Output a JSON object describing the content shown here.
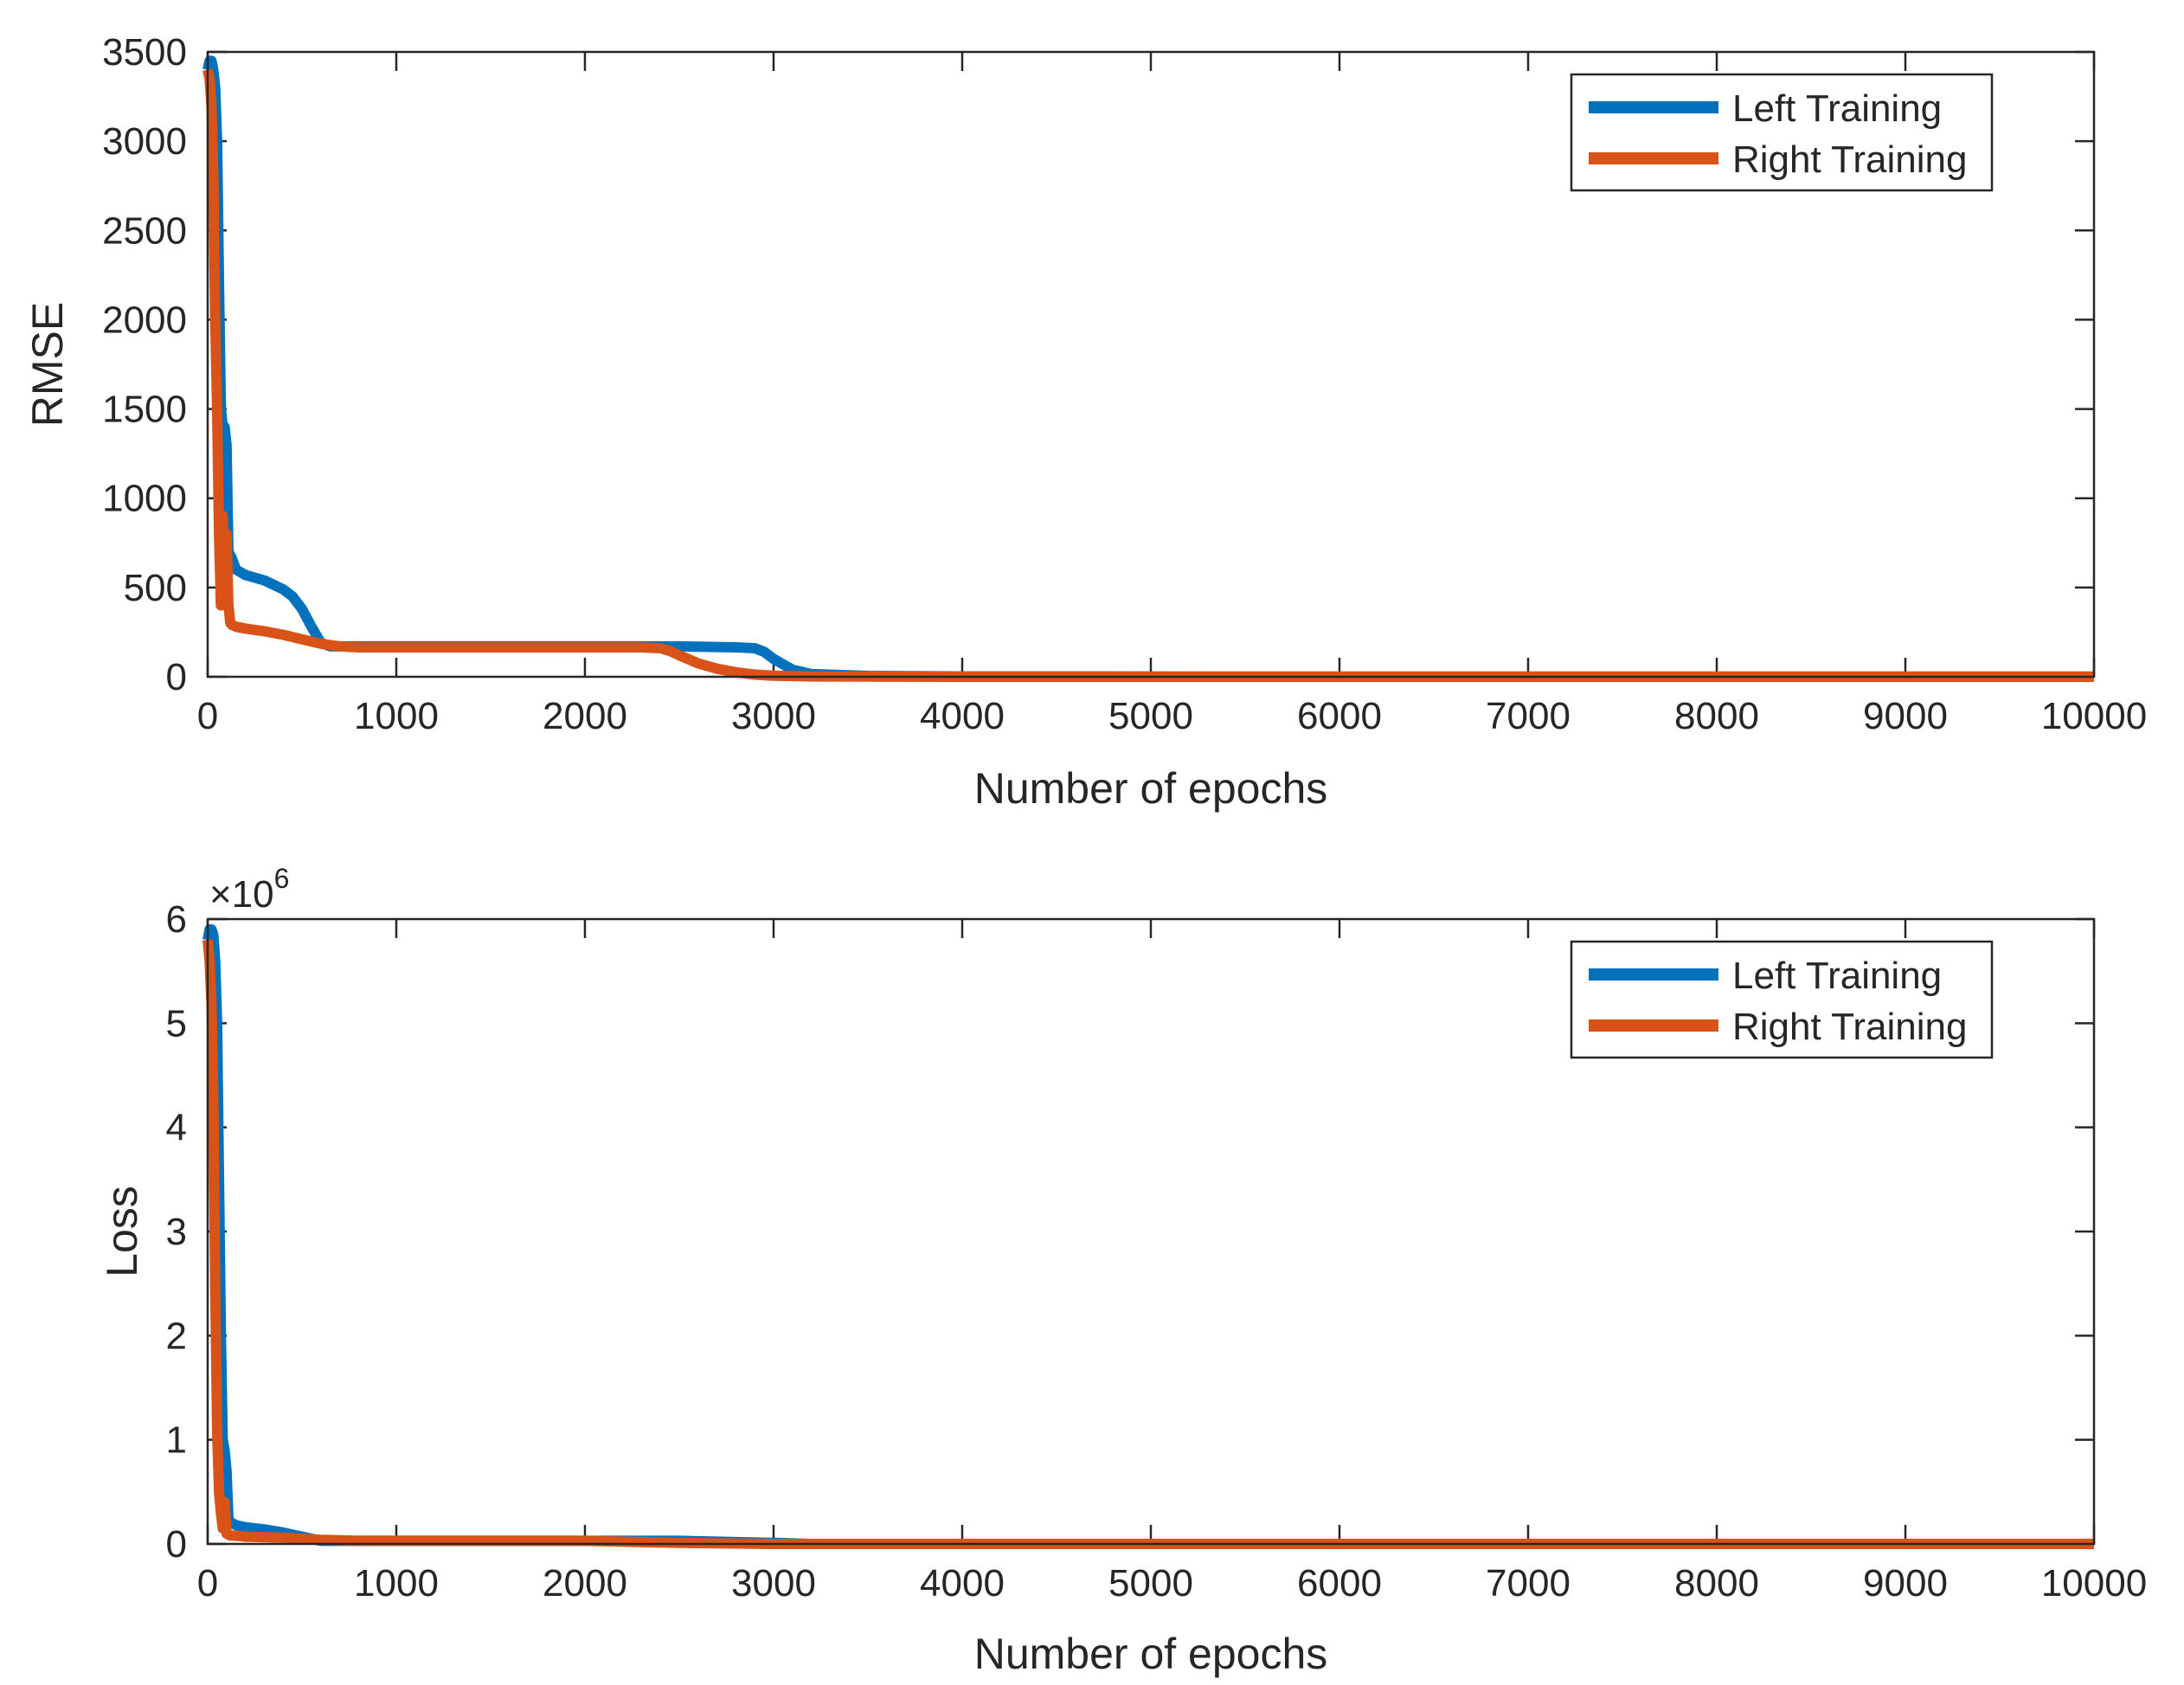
{
  "colors": {
    "left": "#0072BD",
    "right": "#D95319",
    "axis": "#262626",
    "background": "#ffffff"
  },
  "chart_data": [
    {
      "type": "line",
      "title": "",
      "xlabel": "Number of epochs",
      "ylabel": "RMSE",
      "exponent_label": "",
      "xlim": [
        0,
        10000
      ],
      "ylim": [
        0,
        3500
      ],
      "xticks": [
        0,
        1000,
        2000,
        3000,
        4000,
        5000,
        6000,
        7000,
        8000,
        9000,
        10000
      ],
      "yticks": [
        0,
        500,
        1000,
        1500,
        2000,
        2500,
        3000,
        3500
      ],
      "xtick_labels": [
        "0",
        "1000",
        "2000",
        "3000",
        "4000",
        "5000",
        "6000",
        "7000",
        "8000",
        "9000",
        "10000"
      ],
      "ytick_labels": [
        "0",
        "500",
        "1000",
        "1500",
        "2000",
        "2500",
        "3000",
        "3500"
      ],
      "grid": false,
      "legend": {
        "position": "top-right",
        "entries": [
          "Left Training",
          "Right Training"
        ]
      },
      "series": [
        {
          "name": "Left Training",
          "color": "#0072BD",
          "x": [
            0,
            10,
            20,
            30,
            40,
            50,
            60,
            70,
            80,
            90,
            100,
            110,
            120,
            130,
            150,
            200,
            300,
            400,
            450,
            500,
            550,
            600,
            650,
            700,
            800,
            1000,
            1500,
            2000,
            2500,
            2800,
            2900,
            2950,
            3000,
            3100,
            3200,
            3500,
            4000,
            6000,
            8000,
            10000
          ],
          "y": [
            3400,
            3450,
            3450,
            3400,
            3300,
            3000,
            2200,
            1500,
            1400,
            1400,
            1300,
            700,
            680,
            660,
            600,
            570,
            540,
            490,
            450,
            380,
            280,
            190,
            170,
            170,
            170,
            170,
            170,
            170,
            170,
            165,
            160,
            140,
            100,
            40,
            15,
            5,
            2,
            1,
            1,
            1
          ]
        },
        {
          "name": "Right Training",
          "color": "#D95319",
          "x": [
            0,
            10,
            20,
            30,
            40,
            50,
            60,
            70,
            80,
            90,
            100,
            110,
            120,
            130,
            150,
            200,
            300,
            400,
            500,
            600,
            700,
            800,
            1000,
            1500,
            2000,
            2300,
            2400,
            2450,
            2500,
            2600,
            2700,
            2800,
            2900,
            3000,
            3200,
            3500,
            4000,
            6000,
            8000,
            10000
          ],
          "y": [
            3400,
            3350,
            3200,
            2800,
            2000,
            1500,
            800,
            400,
            900,
            450,
            800,
            400,
            300,
            290,
            280,
            270,
            255,
            235,
            210,
            185,
            170,
            165,
            165,
            165,
            165,
            165,
            160,
            145,
            120,
            75,
            45,
            25,
            12,
            6,
            2,
            1,
            0,
            0,
            0,
            0
          ]
        }
      ]
    },
    {
      "type": "line",
      "title": "",
      "xlabel": "Number of epochs",
      "ylabel": "Loss",
      "exponent_label": "×10^6",
      "xlim": [
        0,
        10000
      ],
      "ylim": [
        0,
        6
      ],
      "xticks": [
        0,
        1000,
        2000,
        3000,
        4000,
        5000,
        6000,
        7000,
        8000,
        9000,
        10000
      ],
      "yticks": [
        0,
        1,
        2,
        3,
        4,
        5,
        6
      ],
      "xtick_labels": [
        "0",
        "1000",
        "2000",
        "3000",
        "4000",
        "5000",
        "6000",
        "7000",
        "8000",
        "9000",
        "10000"
      ],
      "ytick_labels": [
        "0",
        "1",
        "2",
        "3",
        "4",
        "5",
        "6"
      ],
      "grid": false,
      "legend": {
        "position": "top-right",
        "entries": [
          "Left Training",
          "Right Training"
        ]
      },
      "series": [
        {
          "name": "Left Training",
          "color": "#0072BD",
          "x": [
            0,
            10,
            20,
            30,
            40,
            50,
            60,
            70,
            80,
            90,
            100,
            110,
            120,
            130,
            150,
            200,
            300,
            400,
            500,
            600,
            650,
            700,
            1000,
            2000,
            2500,
            3000,
            3200,
            4000,
            10000
          ],
          "y": [
            5.8,
            5.9,
            5.9,
            5.85,
            5.6,
            5.0,
            3.5,
            2.0,
            1.0,
            0.9,
            0.7,
            0.25,
            0.2,
            0.2,
            0.18,
            0.16,
            0.14,
            0.11,
            0.07,
            0.03,
            0.03,
            0.03,
            0.03,
            0.03,
            0.03,
            0.01,
            0.0,
            0.0,
            0.0
          ]
        },
        {
          "name": "Right Training",
          "color": "#D95319",
          "x": [
            0,
            10,
            20,
            30,
            40,
            50,
            60,
            70,
            80,
            90,
            100,
            110,
            120,
            150,
            200,
            400,
            600,
            800,
            2000,
            2500,
            3000,
            10000
          ],
          "y": [
            5.8,
            5.6,
            5.2,
            4.3,
            2.5,
            1.1,
            0.5,
            0.3,
            0.15,
            0.4,
            0.1,
            0.09,
            0.08,
            0.08,
            0.07,
            0.06,
            0.04,
            0.03,
            0.03,
            0.01,
            0.0,
            0.0
          ]
        }
      ]
    }
  ]
}
